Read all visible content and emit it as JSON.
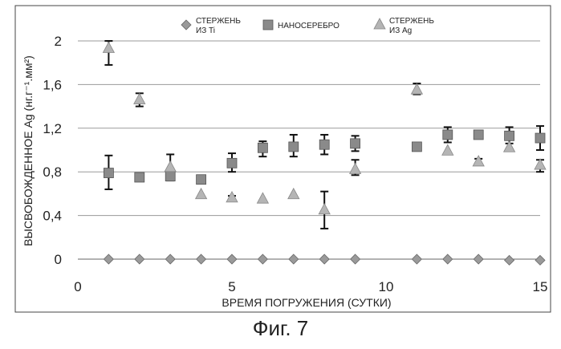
{
  "caption": "Фиг. 7",
  "chart_data": {
    "type": "scatter",
    "xlabel": "ВРЕМЯ ПОГРУЖЕНИЯ (СУТКИ)",
    "ylabel": "ВЫСВОБОЖДЕННОЕ Ag (нг.г⁻¹.мм²)",
    "xlim": [
      0,
      15
    ],
    "ylim": [
      0,
      2
    ],
    "x_ticks": [
      "0",
      "5",
      "10",
      "15"
    ],
    "y_ticks": [
      "0",
      "0,4",
      "0,8",
      "1,2",
      "1,6",
      "2"
    ],
    "grid": "horizontal",
    "legend_position": "top",
    "series": [
      {
        "name": "СТЕРЖЕНЬ ИЗ Ti",
        "legend_lines": [
          "СТЕРЖЕНЬ",
          "ИЗ Ti"
        ],
        "marker": "diamond",
        "color": "#9a9a9a",
        "points": [
          {
            "x": 1,
            "y": 0.0
          },
          {
            "x": 2,
            "y": 0.0
          },
          {
            "x": 3,
            "y": 0.0
          },
          {
            "x": 4,
            "y": 0.0
          },
          {
            "x": 5,
            "y": 0.0
          },
          {
            "x": 6,
            "y": 0.0
          },
          {
            "x": 7,
            "y": 0.0
          },
          {
            "x": 8,
            "y": 0.0
          },
          {
            "x": 9,
            "y": 0.0
          },
          {
            "x": 11,
            "y": 0.0
          },
          {
            "x": 12,
            "y": 0.0
          },
          {
            "x": 13,
            "y": 0.0
          },
          {
            "x": 14,
            "y": -0.01
          },
          {
            "x": 15,
            "y": -0.01
          }
        ]
      },
      {
        "name": "НАНОСЕРЕБРО",
        "legend_lines": [
          "НАНОСЕРЕБРО"
        ],
        "marker": "square",
        "color": "#8a8a8a",
        "points": [
          {
            "x": 1,
            "y": 0.79,
            "err_low": 0.64,
            "err_high": 0.95
          },
          {
            "x": 2,
            "y": 0.75
          },
          {
            "x": 3,
            "y": 0.76,
            "err_low": 0.72,
            "err_high": 0.8
          },
          {
            "x": 4,
            "y": 0.73,
            "err_low": 0.71,
            "err_high": 0.76
          },
          {
            "x": 5,
            "y": 0.88,
            "err_low": 0.8,
            "err_high": 0.97
          },
          {
            "x": 6,
            "y": 1.02,
            "err_low": 0.94,
            "err_high": 1.08
          },
          {
            "x": 7,
            "y": 1.03,
            "err_low": 0.94,
            "err_high": 1.14
          },
          {
            "x": 8,
            "y": 1.05,
            "err_low": 0.96,
            "err_high": 1.14
          },
          {
            "x": 9,
            "y": 1.06,
            "err_low": 0.99,
            "err_high": 1.13
          },
          {
            "x": 11,
            "y": 1.03
          },
          {
            "x": 12,
            "y": 1.14,
            "err_low": 1.07,
            "err_high": 1.21
          },
          {
            "x": 13,
            "y": 1.14
          },
          {
            "x": 14,
            "y": 1.13,
            "err_low": 1.06,
            "err_high": 1.21
          },
          {
            "x": 15,
            "y": 1.11,
            "err_low": 1.0,
            "err_high": 1.22
          }
        ]
      },
      {
        "name": "СТЕРЖЕНЬ ИЗ Ag",
        "legend_lines": [
          "СТЕРЖЕНЬ",
          "ИЗ Ag"
        ],
        "marker": "triangle",
        "color": "#b5b5b5",
        "points": [
          {
            "x": 1,
            "y": 1.93,
            "err_low": 1.78,
            "err_high": 2.0
          },
          {
            "x": 2,
            "y": 1.46,
            "err_low": 1.4,
            "err_high": 1.52
          },
          {
            "x": 3,
            "y": 0.84,
            "err_low": 0.76,
            "err_high": 0.96
          },
          {
            "x": 4,
            "y": 0.59
          },
          {
            "x": 5,
            "y": 0.56,
            "err_low": 0.54,
            "err_high": 0.58
          },
          {
            "x": 6,
            "y": 0.55
          },
          {
            "x": 7,
            "y": 0.59
          },
          {
            "x": 8,
            "y": 0.45,
            "err_low": 0.28,
            "err_high": 0.62
          },
          {
            "x": 9,
            "y": 0.82,
            "err_low": 0.77,
            "err_high": 0.91
          },
          {
            "x": 11,
            "y": 1.55,
            "err_low": 1.51,
            "err_high": 1.61
          },
          {
            "x": 12,
            "y": 0.99
          },
          {
            "x": 13,
            "y": 0.89,
            "err_low": 0.87,
            "err_high": 0.92
          },
          {
            "x": 14,
            "y": 1.02
          },
          {
            "x": 15,
            "y": 0.86,
            "err_low": 0.8,
            "err_high": 0.91
          }
        ]
      }
    ]
  }
}
